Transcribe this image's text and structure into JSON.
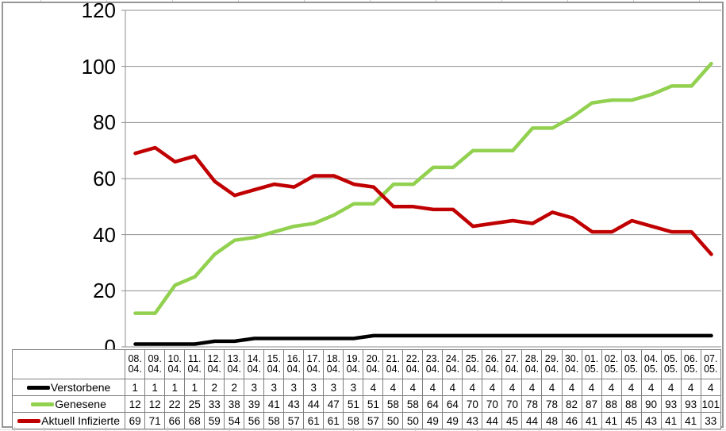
{
  "chart_data": {
    "type": "line",
    "title": "",
    "xlabel": "",
    "ylabel": "",
    "ylim": [
      0,
      120
    ],
    "yticks": [
      0,
      20,
      40,
      60,
      80,
      100,
      120
    ],
    "grid": "horizontal",
    "legend_position": "data-table-left",
    "categories": [
      "08.04.",
      "09.04.",
      "10.04.",
      "11.04.",
      "12.04.",
      "13.04.",
      "14.04.",
      "15.04.",
      "16.04.",
      "17.04.",
      "18.04.",
      "19.04.",
      "20.04.",
      "21.04.",
      "22.04.",
      "23.04.",
      "24.04.",
      "25.04.",
      "26.04.",
      "27.04.",
      "28.04.",
      "29.04.",
      "30.04.",
      "01.05.",
      "02.05.",
      "03.05.",
      "04.05.",
      "05.05.",
      "06.05.",
      "07.05."
    ],
    "series": [
      {
        "name": "Verstorbene",
        "color": "#000000",
        "values": [
          1,
          1,
          1,
          1,
          2,
          2,
          3,
          3,
          3,
          3,
          3,
          3,
          4,
          4,
          4,
          4,
          4,
          4,
          4,
          4,
          4,
          4,
          4,
          4,
          4,
          4,
          4,
          4,
          4,
          4
        ]
      },
      {
        "name": "Genesene",
        "color": "#92D050",
        "values": [
          12,
          12,
          22,
          25,
          33,
          38,
          39,
          41,
          43,
          44,
          47,
          51,
          51,
          58,
          58,
          64,
          64,
          70,
          70,
          70,
          78,
          78,
          82,
          87,
          88,
          88,
          90,
          93,
          93,
          101
        ]
      },
      {
        "name": "Aktuell Infizierte",
        "color": "#C00000",
        "values": [
          69,
          71,
          66,
          68,
          59,
          54,
          56,
          58,
          57,
          61,
          61,
          58,
          57,
          50,
          50,
          49,
          49,
          43,
          44,
          45,
          44,
          48,
          46,
          41,
          41,
          45,
          43,
          41,
          41,
          33
        ]
      }
    ],
    "colors": {
      "gridline": "#8e8e8e",
      "axis": "#8e8e8e",
      "table_border": "#7f7f7f",
      "chart_border": "#969696"
    }
  }
}
